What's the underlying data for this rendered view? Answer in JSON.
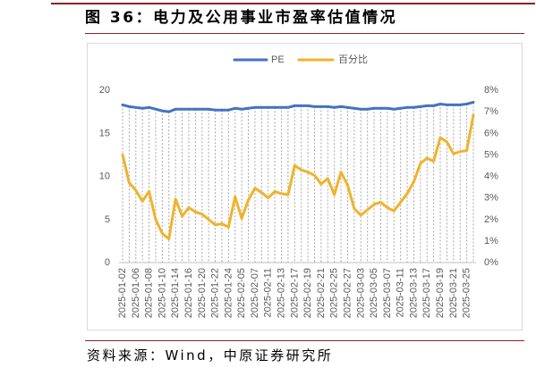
{
  "colors": {
    "rule": "#8C2121"
  },
  "source": "资料来源：Wind，中原证券研究所",
  "chart_data": {
    "type": "line",
    "title": "图 36：电力及公用事业市盈率估值情况",
    "legend": "top-center",
    "grid": false,
    "drop_lines": true,
    "x_tick_labels": [
      "2025-01-02",
      "2025-01-06",
      "2025-01-08",
      "2025-01-10",
      "2025-01-14",
      "2025-01-16",
      "2025-01-20",
      "2025-01-22",
      "2025-01-24",
      "2025-02-05",
      "2025-02-07",
      "2025-02-11",
      "2025-02-13",
      "2025-02-17",
      "2025-02-19",
      "2025-02-21",
      "2025-02-25",
      "2025-02-27",
      "2025-03-03",
      "2025-03-05",
      "2025-03-07",
      "2025-03-11",
      "2025-03-13",
      "2025-03-17",
      "2025-03-19",
      "2025-03-21",
      "2025-03-25"
    ],
    "y_left": {
      "range": [
        0,
        20
      ],
      "tick_labels": [
        "0",
        "5",
        "10",
        "15",
        "20"
      ]
    },
    "y_right": {
      "range": [
        0,
        8
      ],
      "tick_labels": [
        "0%",
        "1%",
        "2%",
        "3%",
        "4%",
        "5%",
        "6%",
        "7%",
        "8%"
      ]
    },
    "series": [
      {
        "name": "PE",
        "axis": "left",
        "color": "#4472C4",
        "values": [
          18.3,
          18.1,
          18.0,
          17.9,
          18.0,
          17.8,
          17.6,
          17.5,
          17.8,
          17.8,
          17.8,
          17.8,
          17.8,
          17.8,
          17.7,
          17.7,
          17.7,
          17.9,
          17.8,
          17.9,
          18.0,
          18.0,
          18.0,
          18.0,
          18.0,
          18.0,
          18.2,
          18.2,
          18.2,
          18.1,
          18.1,
          18.1,
          18.0,
          18.1,
          18.0,
          17.9,
          17.8,
          17.8,
          17.9,
          17.9,
          17.9,
          17.8,
          17.9,
          18.0,
          18.0,
          18.1,
          18.2,
          18.2,
          18.4,
          18.3,
          18.3,
          18.3,
          18.4,
          18.6
        ]
      },
      {
        "name": "百分比",
        "axis": "right",
        "color": "#EFB32B",
        "values": [
          5.0,
          3.7,
          3.35,
          2.85,
          3.3,
          2.0,
          1.35,
          1.1,
          2.95,
          2.15,
          2.55,
          2.35,
          2.25,
          2.0,
          1.75,
          1.8,
          1.65,
          3.05,
          2.05,
          2.9,
          3.45,
          3.25,
          3.0,
          3.3,
          3.2,
          3.15,
          4.5,
          4.3,
          4.2,
          4.05,
          3.65,
          3.9,
          3.15,
          4.2,
          3.6,
          2.5,
          2.2,
          2.45,
          2.7,
          2.8,
          2.55,
          2.4,
          2.8,
          3.2,
          3.75,
          4.6,
          4.85,
          4.7,
          5.8,
          5.6,
          5.05,
          5.15,
          5.2,
          6.85
        ]
      }
    ]
  }
}
